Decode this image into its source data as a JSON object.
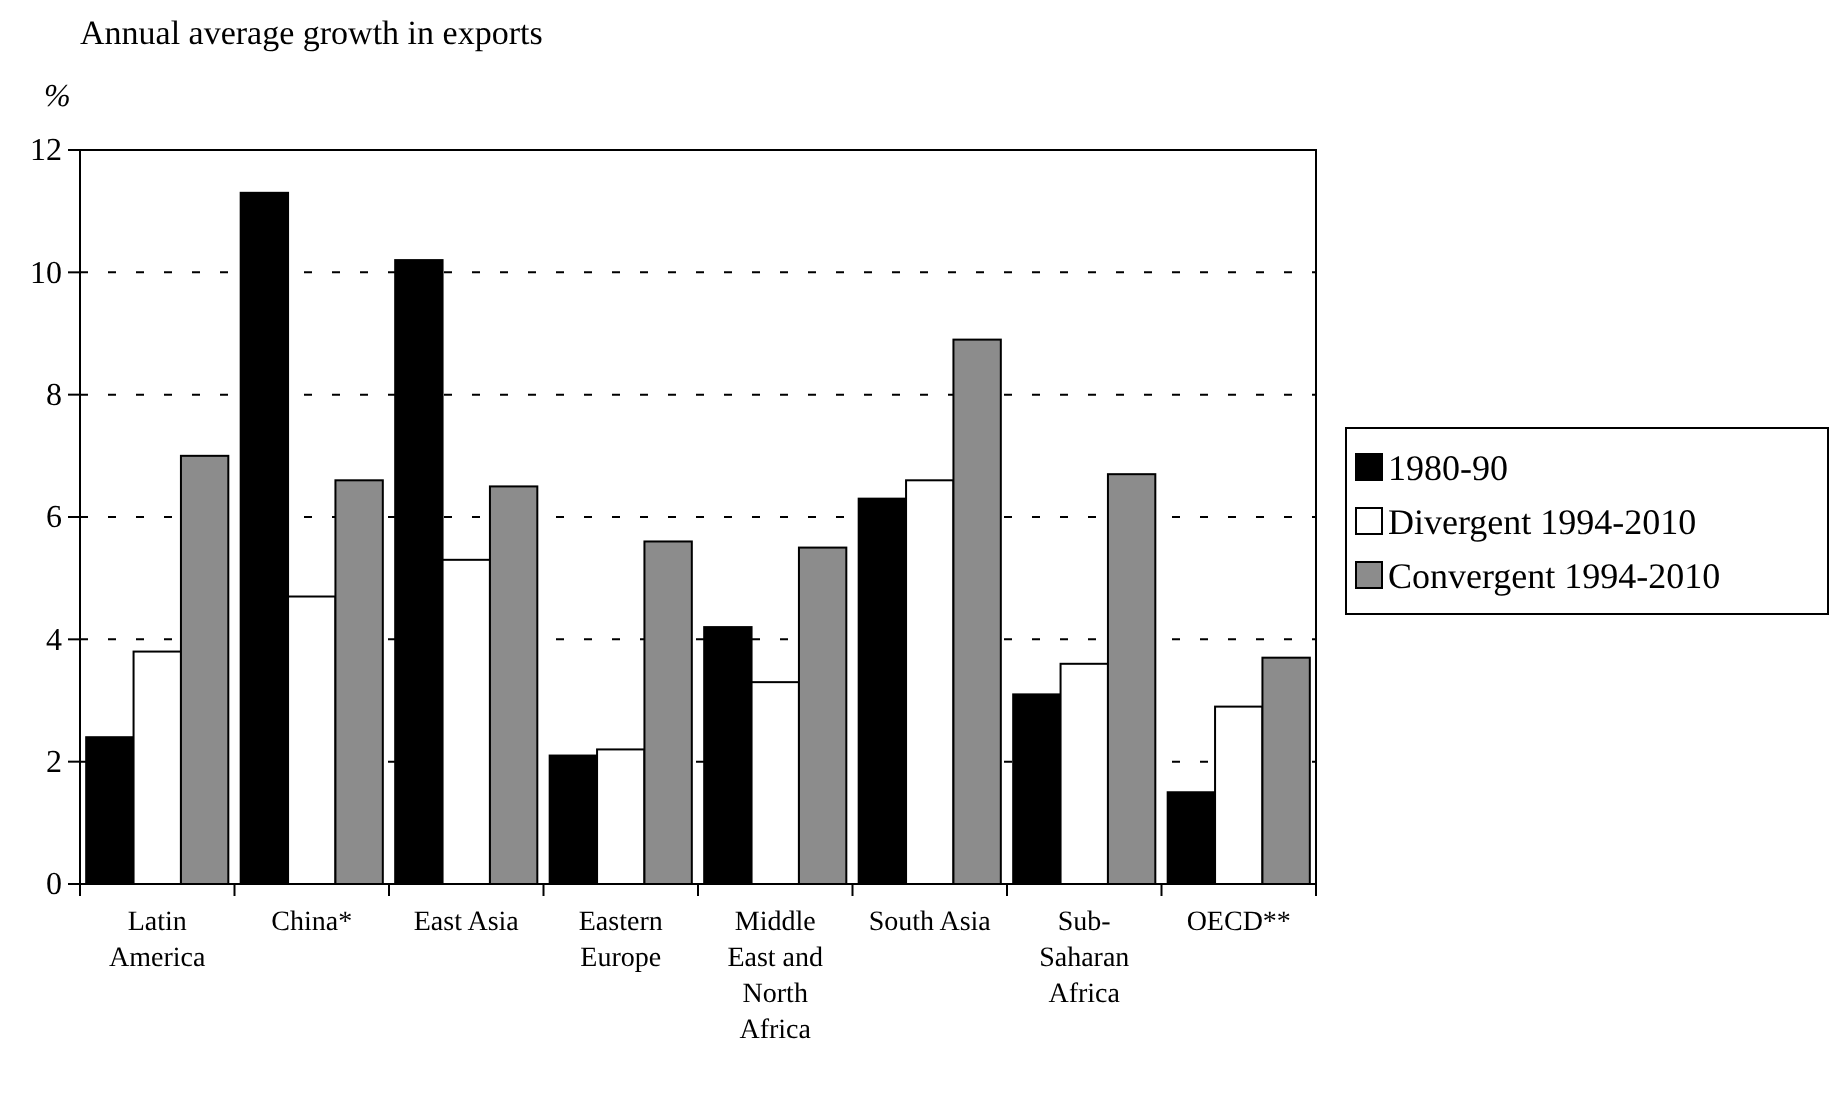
{
  "chart_data": {
    "type": "bar",
    "title": "Annual average growth in exports",
    "ylabel": "%",
    "categories": [
      "Latin America",
      "China*",
      "East Asia",
      "Eastern Europe",
      "Middle East and North Africa",
      "South Asia",
      "Sub-Saharan Africa",
      "OECD**"
    ],
    "series": [
      {
        "name": "1980-90",
        "color": "#000000",
        "values": [
          2.4,
          11.3,
          10.2,
          2.1,
          4.2,
          6.3,
          3.1,
          1.5
        ]
      },
      {
        "name": "Divergent 1994-2010",
        "color": "#ffffff",
        "values": [
          3.8,
          4.7,
          5.3,
          2.2,
          3.3,
          6.6,
          3.6,
          2.9
        ]
      },
      {
        "name": "Convergent 1994-2010",
        "color": "#8c8c8c",
        "values": [
          7.0,
          6.6,
          6.5,
          5.6,
          5.5,
          8.9,
          6.7,
          3.7
        ]
      }
    ],
    "ylim": [
      0,
      12
    ],
    "yticks": [
      0,
      2,
      4,
      6,
      8,
      10,
      12
    ],
    "grid": "y",
    "legend": "right"
  }
}
